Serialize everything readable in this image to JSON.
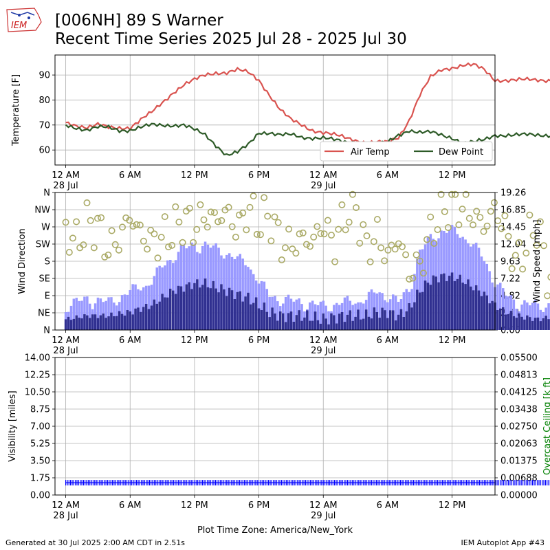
{
  "header": {
    "title_line1": "[006NH] 89 S Warner",
    "title_line2": "Recent Time Series 2025 Jul 28 - 2025 Jul 30",
    "logo_text": "IEM"
  },
  "footer": {
    "generated": "Generated at 30 Jul 2025 2:00 AM CDT in 2.51s",
    "app": "IEM Autoplot App #43",
    "timezone": "Plot Time Zone: America/New_York"
  },
  "colors": {
    "air_temp": "#d9534f",
    "dew_point": "#2d5a27",
    "gust": "#9999ff",
    "wind_speed": "#303090",
    "wind_dir": "#aaaa66",
    "visibility": "#0000ff",
    "ceiling_axis": "#008000",
    "grid": "#b0b0b0"
  },
  "x_axis": {
    "range_hours": [
      -1,
      40
    ],
    "ticks": [
      {
        "h": 0,
        "l1": "12 AM",
        "l2": "28 Jul"
      },
      {
        "h": 6,
        "l1": "6 AM",
        "l2": ""
      },
      {
        "h": 12,
        "l1": "12 PM",
        "l2": ""
      },
      {
        "h": 18,
        "l1": "6 PM",
        "l2": ""
      },
      {
        "h": 24,
        "l1": "12 AM",
        "l2": "29 Jul"
      },
      {
        "h": 30,
        "l1": "6 AM",
        "l2": ""
      },
      {
        "h": 36,
        "l1": "12 PM",
        "l2": ""
      },
      {
        "h": 42,
        "l1": "6 PM",
        "l2": ""
      },
      {
        "h": 48,
        "l1": "12 AM",
        "l2": "30 Jul"
      }
    ]
  },
  "chart_data": [
    {
      "type": "line",
      "title": "Recent Time Series 2025 Jul 28 - 2025 Jul 30",
      "ylabel": "Temperature [F]",
      "ylim": [
        54,
        98
      ],
      "yticks": [
        60,
        70,
        80,
        90
      ],
      "grid": true,
      "legend_position": "lower-right",
      "series": [
        {
          "name": "Air Temp",
          "points": [
            [
              0,
              71
            ],
            [
              1,
              70
            ],
            [
              2,
              69
            ],
            [
              3,
              70
            ],
            [
              4,
              69
            ],
            [
              5,
              69
            ],
            [
              6,
              69
            ],
            [
              7,
              72
            ],
            [
              8,
              75
            ],
            [
              9,
              79
            ],
            [
              10,
              83
            ],
            [
              11,
              86
            ],
            [
              12,
              88
            ],
            [
              13,
              90
            ],
            [
              14,
              91
            ],
            [
              15,
              91
            ],
            [
              16,
              92
            ],
            [
              17,
              91
            ],
            [
              18,
              88
            ],
            [
              19,
              82
            ],
            [
              20,
              76
            ],
            [
              21,
              72
            ],
            [
              22,
              70
            ],
            [
              23,
              68
            ],
            [
              24,
              67
            ],
            [
              25,
              66
            ],
            [
              26,
              65
            ],
            [
              27,
              64
            ],
            [
              28,
              63
            ],
            [
              29,
              63
            ],
            [
              30,
              63
            ],
            [
              31,
              65
            ],
            [
              32,
              72
            ],
            [
              33,
              82
            ],
            [
              34,
              89
            ],
            [
              35,
              92
            ],
            [
              36,
              93
            ],
            [
              37,
              94
            ],
            [
              38,
              94
            ],
            [
              39,
              92
            ],
            [
              40,
              88
            ]
          ]
        },
        {
          "name": "Dew Point",
          "points": [
            [
              0,
              70
            ],
            [
              1,
              69
            ],
            [
              2,
              68
            ],
            [
              3,
              69
            ],
            [
              4,
              69
            ],
            [
              5,
              68
            ],
            [
              6,
              68
            ],
            [
              7,
              69
            ],
            [
              8,
              70
            ],
            [
              9,
              70
            ],
            [
              10,
              70
            ],
            [
              11,
              70
            ],
            [
              12,
              68
            ],
            [
              13,
              66
            ],
            [
              14,
              62
            ],
            [
              15,
              58
            ],
            [
              16,
              59
            ],
            [
              17,
              62
            ],
            [
              18,
              67
            ],
            [
              19,
              67
            ],
            [
              20,
              66
            ],
            [
              21,
              66
            ],
            [
              22,
              65
            ],
            [
              23,
              65
            ],
            [
              24,
              65
            ],
            [
              25,
              64
            ],
            [
              26,
              63
            ],
            [
              27,
              63
            ],
            [
              28,
              62
            ],
            [
              29,
              62
            ],
            [
              30,
              63
            ],
            [
              31,
              66
            ],
            [
              32,
              68
            ],
            [
              33,
              67
            ],
            [
              34,
              67
            ],
            [
              35,
              66
            ],
            [
              36,
              65
            ],
            [
              37,
              63
            ],
            [
              38,
              63
            ],
            [
              39,
              64
            ],
            [
              40,
              66
            ]
          ]
        }
      ]
    },
    {
      "type": "bar",
      "ylabel": "Wind Direction",
      "y2label": "Wind Speed [mph]",
      "ylim_direction": [
        0,
        360
      ],
      "direction_ticks": [
        "N",
        "NE",
        "E",
        "SE",
        "S",
        "SW",
        "W",
        "NW",
        "N"
      ],
      "ylim_speed": [
        0,
        19.26
      ],
      "speed_ticks": [
        "0.00",
        "2.41",
        "4.82",
        "7.22",
        "9.63",
        "12.04",
        "14.45",
        "16.85",
        "19.26"
      ],
      "grid": true,
      "series": [
        {
          "name": "Gust",
          "points": [
            [
              0,
              2.5
            ],
            [
              2,
              3.5
            ],
            [
              4,
              3
            ],
            [
              6,
              4.5
            ],
            [
              8,
              6
            ],
            [
              9,
              8
            ],
            [
              10,
              9.5
            ],
            [
              11,
              10.5
            ],
            [
              12,
              11
            ],
            [
              13,
              11
            ],
            [
              14,
              10.5
            ],
            [
              15,
              10
            ],
            [
              16,
              9
            ],
            [
              17,
              8.5
            ],
            [
              18,
              6
            ],
            [
              19,
              4
            ],
            [
              20,
              3.5
            ],
            [
              22,
              3
            ],
            [
              24,
              2.5
            ],
            [
              26,
              3
            ],
            [
              28,
              3.5
            ],
            [
              29,
              4.5
            ],
            [
              30,
              4
            ],
            [
              31,
              3
            ],
            [
              32,
              5
            ],
            [
              33,
              10
            ],
            [
              34,
              12
            ],
            [
              35,
              13
            ],
            [
              36,
              13
            ],
            [
              37,
              12.5
            ],
            [
              38,
              11
            ],
            [
              39,
              9
            ],
            [
              40,
              6
            ],
            [
              41,
              4
            ],
            [
              42,
              3
            ],
            [
              44,
              2.5
            ],
            [
              46,
              3
            ],
            [
              48,
              2
            ],
            [
              49,
              1.5
            ]
          ]
        },
        {
          "name": "Wind Speed",
          "points": [
            [
              0,
              1.5
            ],
            [
              2,
              2
            ],
            [
              4,
              2
            ],
            [
              6,
              2.5
            ],
            [
              8,
              3.5
            ],
            [
              9,
              4.5
            ],
            [
              10,
              5.5
            ],
            [
              11,
              6
            ],
            [
              12,
              6.5
            ],
            [
              13,
              6.5
            ],
            [
              14,
              6
            ],
            [
              15,
              5.5
            ],
            [
              16,
              5
            ],
            [
              17,
              4.5
            ],
            [
              18,
              3.5
            ],
            [
              19,
              2.5
            ],
            [
              20,
              2
            ],
            [
              22,
              2
            ],
            [
              24,
              1.5
            ],
            [
              26,
              2
            ],
            [
              28,
              2
            ],
            [
              29,
              2.5
            ],
            [
              30,
              2.5
            ],
            [
              31,
              2
            ],
            [
              32,
              3
            ],
            [
              33,
              5.5
            ],
            [
              34,
              7
            ],
            [
              35,
              7.5
            ],
            [
              36,
              7.5
            ],
            [
              37,
              7
            ],
            [
              38,
              6
            ],
            [
              39,
              5
            ],
            [
              40,
              3.5
            ],
            [
              41,
              2.5
            ],
            [
              42,
              2
            ],
            [
              44,
              1.5
            ],
            [
              46,
              2
            ],
            [
              48,
              1
            ],
            [
              49,
              0.5
            ]
          ]
        },
        {
          "name": "Wind Direction",
          "points": [
            [
              0,
              260
            ],
            [
              1,
              230
            ],
            [
              2,
              280
            ],
            [
              3,
              270
            ],
            [
              4,
              210
            ],
            [
              5,
              240
            ],
            [
              6,
              300
            ],
            [
              7,
              250
            ],
            [
              8,
              230
            ],
            [
              9,
              240
            ],
            [
              10,
              260
            ],
            [
              11,
              290
            ],
            [
              12,
              270
            ],
            [
              13,
              300
            ],
            [
              14,
              290
            ],
            [
              15,
              310
            ],
            [
              16,
              260
            ],
            [
              17,
              320
            ],
            [
              18,
              280
            ],
            [
              19,
              300
            ],
            [
              20,
              230
            ],
            [
              21,
              220
            ],
            [
              22,
              240
            ],
            [
              23,
              230
            ],
            [
              24,
              280
            ],
            [
              25,
              220
            ],
            [
              26,
              300
            ],
            [
              27,
              330
            ],
            [
              28,
              210
            ],
            [
              29,
              250
            ],
            [
              30,
              190
            ],
            [
              31,
              240
            ],
            [
              32,
              150
            ],
            [
              33,
              170
            ],
            [
              34,
              250
            ],
            [
              35,
              310
            ],
            [
              36,
              330
            ],
            [
              37,
              320
            ],
            [
              38,
              300
            ],
            [
              39,
              270
            ],
            [
              40,
              320
            ],
            [
              41,
              260
            ],
            [
              42,
              170
            ],
            [
              43,
              230
            ],
            [
              44,
              280
            ],
            [
              45,
              120
            ],
            [
              46,
              210
            ],
            [
              47,
              350
            ],
            [
              48,
              230
            ],
            [
              49,
              250
            ]
          ]
        }
      ]
    },
    {
      "type": "line",
      "ylabel": "Visibility [miles]",
      "y2label": "Overcast Ceiling [k ft]",
      "ylim": [
        0,
        14
      ],
      "yticks": [
        "0.00",
        "1.75",
        "3.50",
        "5.25",
        "7.00",
        "8.75",
        "10.50",
        "12.25",
        "14.00"
      ],
      "y2lim": [
        0,
        0.055
      ],
      "y2ticks": [
        "0.00000",
        "0.00688",
        "0.01375",
        "0.02063",
        "0.02750",
        "0.03438",
        "0.04125",
        "0.04813",
        "0.05500"
      ],
      "grid": true,
      "series": [
        {
          "name": "Visibility",
          "points": [
            [
              0,
              1.25
            ],
            [
              49,
              1.25
            ]
          ]
        }
      ]
    }
  ]
}
